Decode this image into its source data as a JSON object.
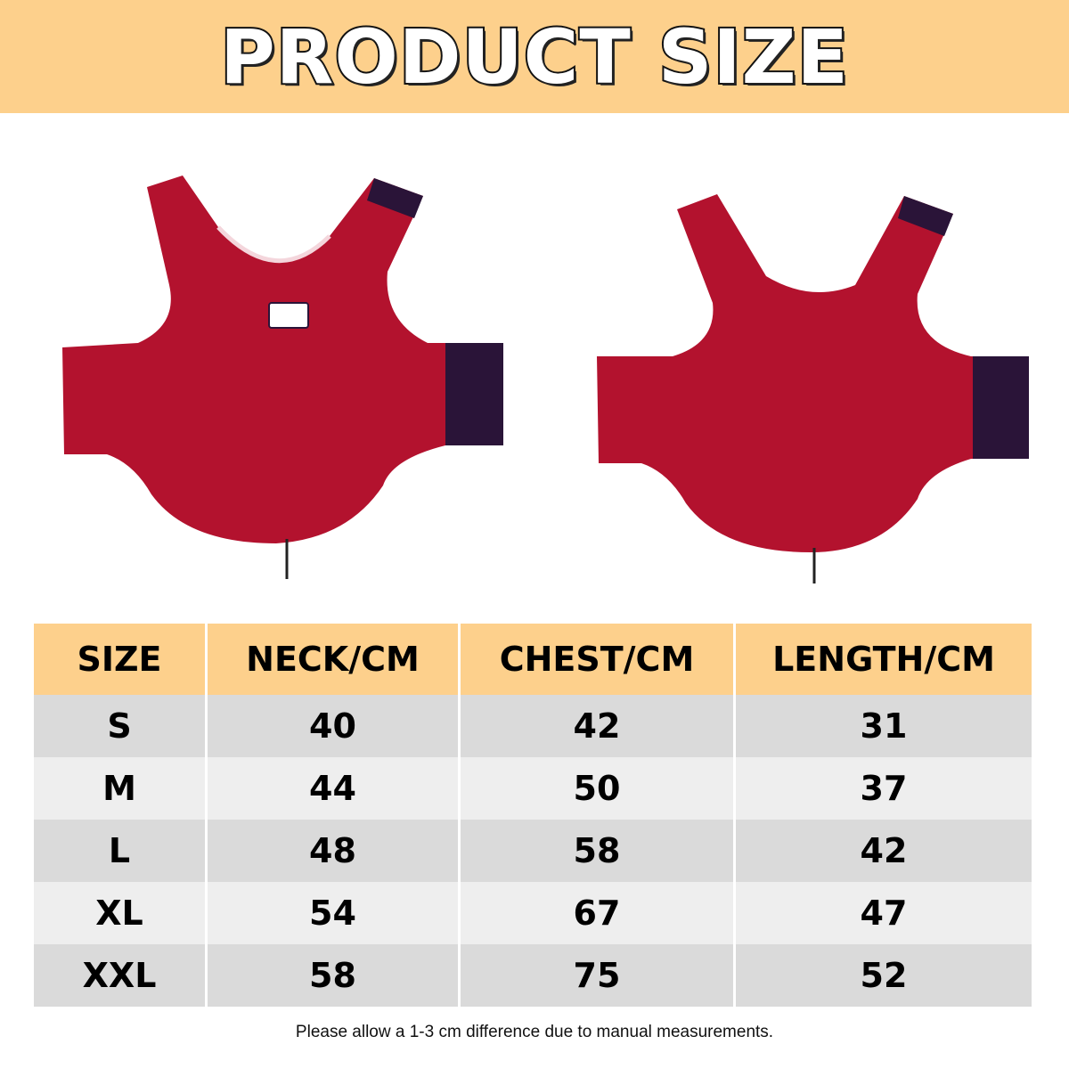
{
  "title": "PRODUCT SIZE",
  "colors": {
    "banner": "#fdd08c",
    "vest": "#b3122e",
    "cuff": "#2a1438",
    "row_dark": "#dadada",
    "row_light": "#eeeeee"
  },
  "images": [
    "vest-front-view",
    "vest-back-view"
  ],
  "table": {
    "headers": [
      "SIZE",
      "NECK/CM",
      "CHEST/CM",
      "LENGTH/CM"
    ],
    "rows": [
      [
        "S",
        "40",
        "42",
        "31"
      ],
      [
        "M",
        "44",
        "50",
        "37"
      ],
      [
        "L",
        "48",
        "58",
        "42"
      ],
      [
        "XL",
        "54",
        "67",
        "47"
      ],
      [
        "XXL",
        "58",
        "75",
        "52"
      ]
    ]
  },
  "note": "Please allow a 1-3 cm difference due to manual measurements."
}
